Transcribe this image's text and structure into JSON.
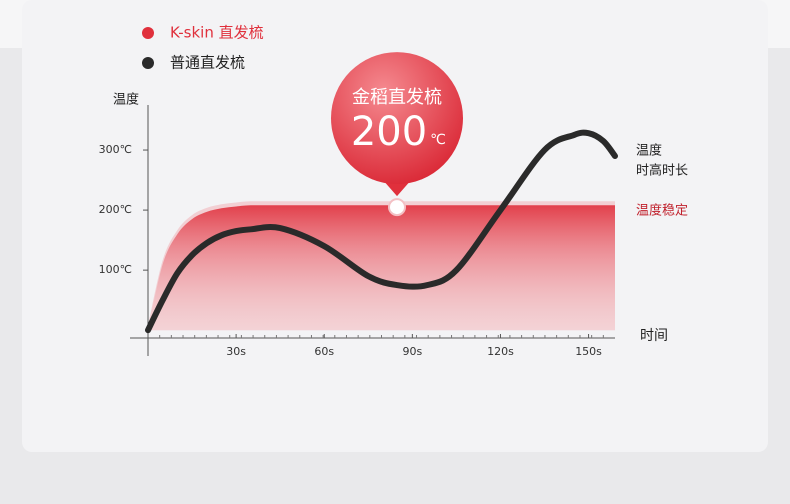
{
  "chart_data": {
    "type": "line",
    "x_label": "时间",
    "y_label": "温度",
    "xlim": [
      0,
      159
    ],
    "ylim": [
      -13,
      375
    ],
    "xticks": [
      {
        "value": 30,
        "label": "30s"
      },
      {
        "value": 60,
        "label": "60s"
      },
      {
        "value": 90,
        "label": "90s"
      },
      {
        "value": 120,
        "label": "120s"
      },
      {
        "value": 150,
        "label": "150s"
      }
    ],
    "yticks": [
      {
        "value": 100,
        "label": "100℃"
      },
      {
        "value": 200,
        "label": "200℃"
      },
      {
        "value": 300,
        "label": "300℃"
      }
    ],
    "x": [
      0,
      5,
      10,
      15,
      20,
      25,
      30,
      35,
      45,
      60,
      75,
      85,
      95,
      105,
      120,
      135,
      145,
      150,
      155,
      159
    ],
    "series": [
      {
        "name": "K-skin 直发梳",
        "color": "#e0303c",
        "values": [
          0,
          110,
          160,
          185,
          197,
          203,
          206,
          208,
          208,
          208,
          208,
          208,
          208,
          208,
          208,
          208,
          208,
          208,
          208,
          208
        ]
      },
      {
        "name": "普通直发梳",
        "color": "#2a2a2a",
        "values": [
          0,
          50,
          95,
          125,
          145,
          158,
          165,
          168,
          170,
          140,
          90,
          75,
          75,
          100,
          200,
          300,
          325,
          328,
          315,
          290
        ]
      }
    ],
    "callout": {
      "title": "金稻直发梳",
      "value": 200,
      "unit": "℃"
    },
    "annotations": [
      "温度",
      "时高时长",
      "温度稳定"
    ]
  }
}
